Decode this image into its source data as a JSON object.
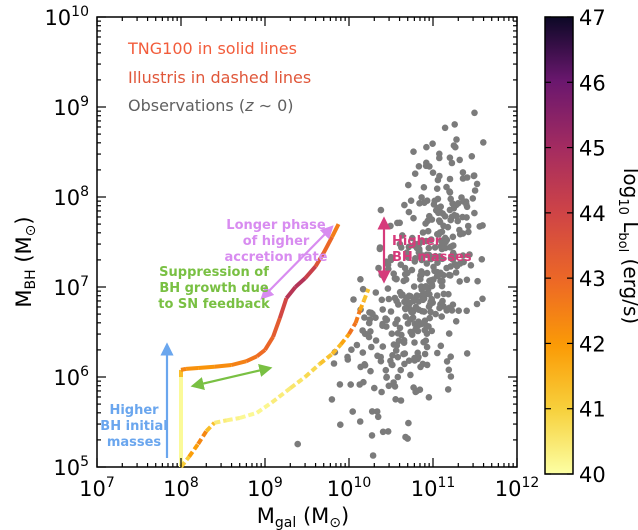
{
  "chart_data": {
    "type": "scatter",
    "x_scale": "log",
    "y_scale": "log",
    "xlim": [
      10000000,
      1000000000000
    ],
    "ylim": [
      100000,
      10000000000
    ],
    "xlabel": "M_gal (M_⊙)",
    "ylabel": "M_BH (M_⊙)",
    "x_ticks": [
      {
        "base": "10",
        "exp": "7",
        "value": 10000000
      },
      {
        "base": "10",
        "exp": "8",
        "value": 100000000
      },
      {
        "base": "10",
        "exp": "9",
        "value": 1000000000
      },
      {
        "base": "10",
        "exp": "10",
        "value": 10000000000
      },
      {
        "base": "10",
        "exp": "11",
        "value": 100000000000
      },
      {
        "base": "10",
        "exp": "12",
        "value": 1000000000000
      }
    ],
    "y_ticks": [
      {
        "base": "10",
        "exp": "5",
        "value": 100000
      },
      {
        "base": "10",
        "exp": "6",
        "value": 1000000
      },
      {
        "base": "10",
        "exp": "7",
        "value": 10000000
      },
      {
        "base": "10",
        "exp": "8",
        "value": 100000000
      },
      {
        "base": "10",
        "exp": "9",
        "value": 1000000000
      },
      {
        "base": "10",
        "exp": "10",
        "value": 10000000000
      }
    ],
    "legend": [
      {
        "text": "TNG100 in solid lines",
        "color": "#f25c3b"
      },
      {
        "text": "Illustris in dashed lines",
        "color": "#e0573a"
      },
      {
        "text": "Observations (z ∼ 0)",
        "color": "#606060"
      }
    ],
    "colorbar": {
      "label": "log10 L_bol (erg/s)",
      "min": 40,
      "max": 47,
      "ticks": [
        "40",
        "41",
        "42",
        "43",
        "44",
        "45",
        "46",
        "47"
      ],
      "colormap": "inferno_r"
    },
    "annotations": [
      {
        "lines": [
          "Higher",
          "BH initial",
          "masses"
        ],
        "color": "#6aa6ee"
      },
      {
        "lines": [
          "Suppression of",
          "BH growth due",
          "to SN feedback"
        ],
        "color": "#79c043"
      },
      {
        "lines": [
          "Longer phase",
          "of higher",
          "accretion rate"
        ],
        "color": "#d88cf0"
      },
      {
        "lines": [
          "Higher",
          "BH masses"
        ],
        "color": "#d63b7b"
      }
    ],
    "series": [
      {
        "kind": "TNG100",
        "style": "solid",
        "points": [
          {
            "x": 100000000,
            "y": 100000,
            "c": 40.0
          },
          {
            "x": 100000000,
            "y": 1000000,
            "c": 40.2
          },
          {
            "x": 100000000,
            "y": 1200000,
            "c": 42.5
          },
          {
            "x": 115000000,
            "y": 1230000,
            "c": 42.3
          },
          {
            "x": 160000000,
            "y": 1260000,
            "c": 42.0
          },
          {
            "x": 250000000,
            "y": 1300000,
            "c": 42.2
          },
          {
            "x": 400000000,
            "y": 1360000,
            "c": 42.3
          },
          {
            "x": 600000000,
            "y": 1500000,
            "c": 42.6
          },
          {
            "x": 800000000,
            "y": 1700000,
            "c": 42.8
          },
          {
            "x": 1000000000,
            "y": 2000000,
            "c": 43.0
          },
          {
            "x": 1250000000,
            "y": 2800000,
            "c": 43.1
          },
          {
            "x": 1500000000,
            "y": 4500000,
            "c": 43.5
          },
          {
            "x": 1800000000,
            "y": 7500000,
            "c": 44.3
          },
          {
            "x": 2300000000,
            "y": 10000000,
            "c": 44.8
          },
          {
            "x": 3000000000,
            "y": 12500000,
            "c": 44.5
          },
          {
            "x": 4000000000,
            "y": 17000000,
            "c": 43.8
          },
          {
            "x": 5000000000,
            "y": 24000000,
            "c": 43.2
          },
          {
            "x": 6300000000,
            "y": 36000000,
            "c": 42.8
          },
          {
            "x": 7500000000,
            "y": 50000000,
            "c": 42.3
          }
        ]
      },
      {
        "kind": "Illustris",
        "style": "dashed",
        "points": [
          {
            "x": 100000000,
            "y": 100000,
            "c": 40.8
          },
          {
            "x": 125000000,
            "y": 130000,
            "c": 41.3
          },
          {
            "x": 160000000,
            "y": 180000,
            "c": 42.5
          },
          {
            "x": 200000000,
            "y": 250000,
            "c": 42.2
          },
          {
            "x": 250000000,
            "y": 310000,
            "c": 40.5
          },
          {
            "x": 350000000,
            "y": 330000,
            "c": 40.3
          },
          {
            "x": 500000000,
            "y": 350000,
            "c": 40.2
          },
          {
            "x": 800000000,
            "y": 400000,
            "c": 40.1
          },
          {
            "x": 1200000000,
            "y": 520000,
            "c": 40.3
          },
          {
            "x": 2000000000,
            "y": 750000,
            "c": 40.5
          },
          {
            "x": 3000000000,
            "y": 1000000,
            "c": 40.6
          },
          {
            "x": 4500000000,
            "y": 1400000,
            "c": 41.0
          },
          {
            "x": 6300000000,
            "y": 1800000,
            "c": 41.5
          },
          {
            "x": 8000000000,
            "y": 2300000,
            "c": 41.3
          },
          {
            "x": 10000000000,
            "y": 3000000,
            "c": 42.3
          },
          {
            "x": 12000000000,
            "y": 4000000,
            "c": 43.2
          },
          {
            "x": 13500000000,
            "y": 5500000,
            "c": 42.0
          },
          {
            "x": 15000000000,
            "y": 7000000,
            "c": 41.5
          },
          {
            "x": 17000000000,
            "y": 9500000,
            "c": 41.0
          }
        ]
      }
    ]
  }
}
